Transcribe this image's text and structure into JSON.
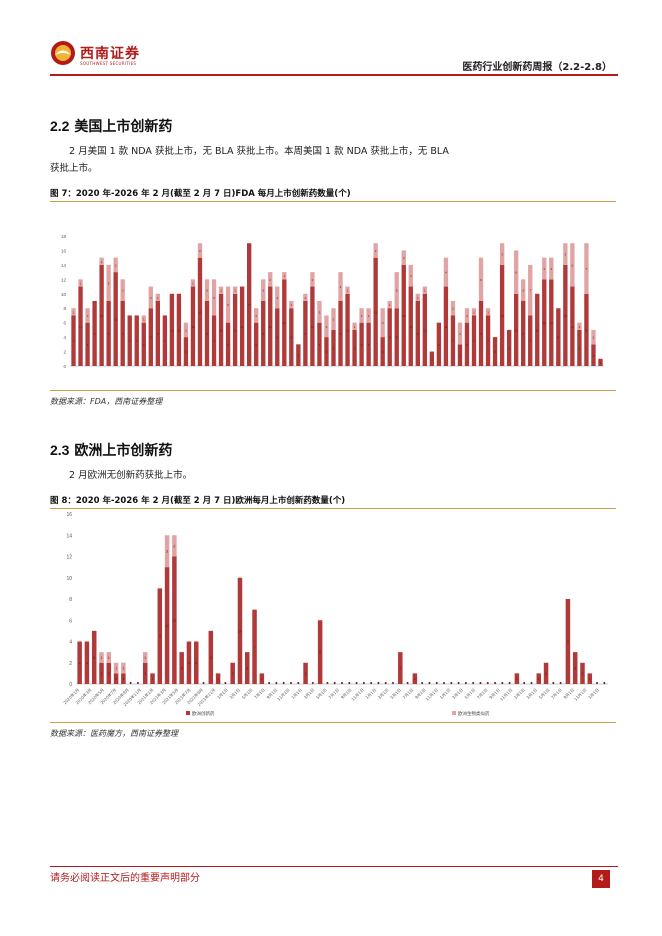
{
  "header": {
    "logo_cn": "西南证券",
    "logo_en": "SOUTHWEST SECURITIES",
    "report_title": "医药行业创新药周报（2.2-2.8）"
  },
  "section_us": {
    "number": "2.2",
    "title": "美国上市创新药",
    "paragraph_line1": "2 月美国 1 款 NDA 获批上市，无 BLA 获批上市。本周美国 1 款 NDA 获批上市，无 BLA",
    "paragraph_line2": "获批上市。"
  },
  "figure7": {
    "caption": "图 7：2020 年-2026 年 2 月(截至 2 月 7 日)FDA 每月上市创新药数量(个)",
    "source": "数据来源：FDA，西南证券整理"
  },
  "section_eu": {
    "number": "2.3",
    "title": "欧洲上市创新药",
    "paragraph": "2 月欧洲无创新药获批上市。"
  },
  "figure8": {
    "caption": "图 8：2020 年-2026 年 2 月(截至 2 月 7 日)欧洲每月上市创新药数量(个)",
    "source": "数据来源：医药魔方，西南证券整理"
  },
  "footer": {
    "note": "请务必阅读正文后的重要声明部分",
    "page": "4"
  },
  "colors": {
    "brand_red": "#b31a1a",
    "series_dark": "#b03a3a",
    "series_light": "#e1a4a4",
    "rule_gold": "#c9a04a"
  },
  "chart_data": [
    {
      "type": "bar",
      "stacked": true,
      "yticks": [
        "0",
        "2",
        "4",
        "6",
        "8",
        "10",
        "12",
        "14",
        "16",
        "18"
      ],
      "ylim": [
        0,
        18
      ],
      "grid": false,
      "legend": "bottom-center",
      "series": [
        {
          "values": [
            7,
            11,
            6,
            9,
            14,
            9,
            13,
            9,
            7,
            7,
            6,
            8,
            9,
            7,
            10,
            10,
            4,
            11,
            15,
            9,
            7,
            10,
            6,
            10,
            11,
            17,
            6,
            9,
            11,
            8,
            12,
            8,
            3,
            9,
            11,
            6,
            4,
            5,
            9,
            10,
            5,
            6,
            6,
            15,
            4,
            8,
            8,
            14,
            11,
            9,
            10,
            2,
            6,
            11,
            7,
            3,
            6,
            7,
            9,
            7,
            4,
            14,
            5,
            10,
            9,
            7,
            10,
            12,
            12,
            8,
            14,
            11,
            5,
            10,
            3,
            1
          ]
        },
        {
          "values": [
            1,
            1,
            2,
            0,
            1,
            5,
            2,
            3,
            0,
            0,
            1,
            3,
            1,
            0,
            0,
            0,
            2,
            1,
            2,
            3,
            5,
            1,
            5,
            1,
            0,
            0,
            2,
            3,
            2,
            3,
            1,
            1,
            0,
            1,
            2,
            3,
            3,
            3,
            4,
            1,
            1,
            2,
            2,
            2,
            4,
            1,
            5,
            2,
            3,
            1,
            1,
            0,
            0,
            4,
            2,
            3,
            2,
            1,
            6,
            1,
            0,
            3,
            0,
            6,
            3,
            7,
            0,
            3,
            3,
            0,
            3,
            6,
            1,
            7,
            2,
            0
          ]
        }
      ]
    },
    {
      "type": "bar",
      "stacked": true,
      "yticks": [
        "0",
        "2",
        "4",
        "6",
        "8",
        "10",
        "12",
        "14",
        "16"
      ],
      "xticks": [
        "2020年1月",
        "2020年3月",
        "2020年5月",
        "2020年7月",
        "2020年9月",
        "2020年11月",
        "2021年1月",
        "2021年3月",
        "2021年5月",
        "2021年7月",
        "2021年9月",
        "2021年11月",
        "1月1日",
        "3月1日",
        "5月1日",
        "7月1日",
        "9月1日",
        "11月1日",
        "1月1日",
        "3月1日",
        "5月1日",
        "7月1日",
        "9月1日",
        "11月1日",
        "1月1日",
        "3月1日",
        "5月1日",
        "7月1日",
        "9月1日",
        "11月1日",
        "1月1日",
        "3月1日",
        "5月1日",
        "7月1日",
        "9月1日",
        "11月1日",
        "1月1日",
        "3月1日",
        "5月1日",
        "7月1日",
        "9月1日",
        "11月1日",
        "1月1日"
      ],
      "ylim": [
        0,
        16
      ],
      "grid": false,
      "legend": "bottom-center",
      "series": [
        {
          "name": "欧洲创新药",
          "values": [
            4,
            4,
            5,
            2,
            2,
            1,
            1,
            0,
            0,
            2,
            1,
            9,
            11,
            12,
            3,
            4,
            4,
            0,
            5,
            1,
            0,
            2,
            10,
            3,
            7,
            1,
            0,
            0,
            0,
            0,
            0,
            2,
            0,
            6,
            0,
            0,
            0,
            0,
            0,
            0,
            0,
            0,
            0,
            0,
            3,
            0,
            1,
            0,
            0,
            0,
            0,
            0,
            0,
            0,
            0,
            0,
            0,
            0,
            0,
            0,
            1,
            0,
            0,
            1,
            2,
            0,
            0,
            8,
            3,
            2,
            1,
            0,
            0
          ]
        },
        {
          "name": "欧洲生物类似药",
          "values": [
            0,
            0,
            0,
            1,
            1,
            1,
            1,
            0,
            0,
            1,
            0,
            0,
            3,
            2,
            0,
            0,
            0,
            0,
            0,
            0,
            0,
            0,
            0,
            0,
            0,
            0,
            0,
            0,
            0,
            0,
            0,
            0,
            0,
            0,
            0,
            0,
            0,
            0,
            0,
            0,
            0,
            0,
            0,
            0,
            0,
            0,
            0,
            0,
            0,
            0,
            0,
            0,
            0,
            0,
            0,
            0,
            0,
            0,
            0,
            0,
            0,
            0,
            0,
            0,
            0,
            0,
            0,
            0,
            0,
            0,
            0,
            0,
            0
          ]
        }
      ]
    }
  ]
}
